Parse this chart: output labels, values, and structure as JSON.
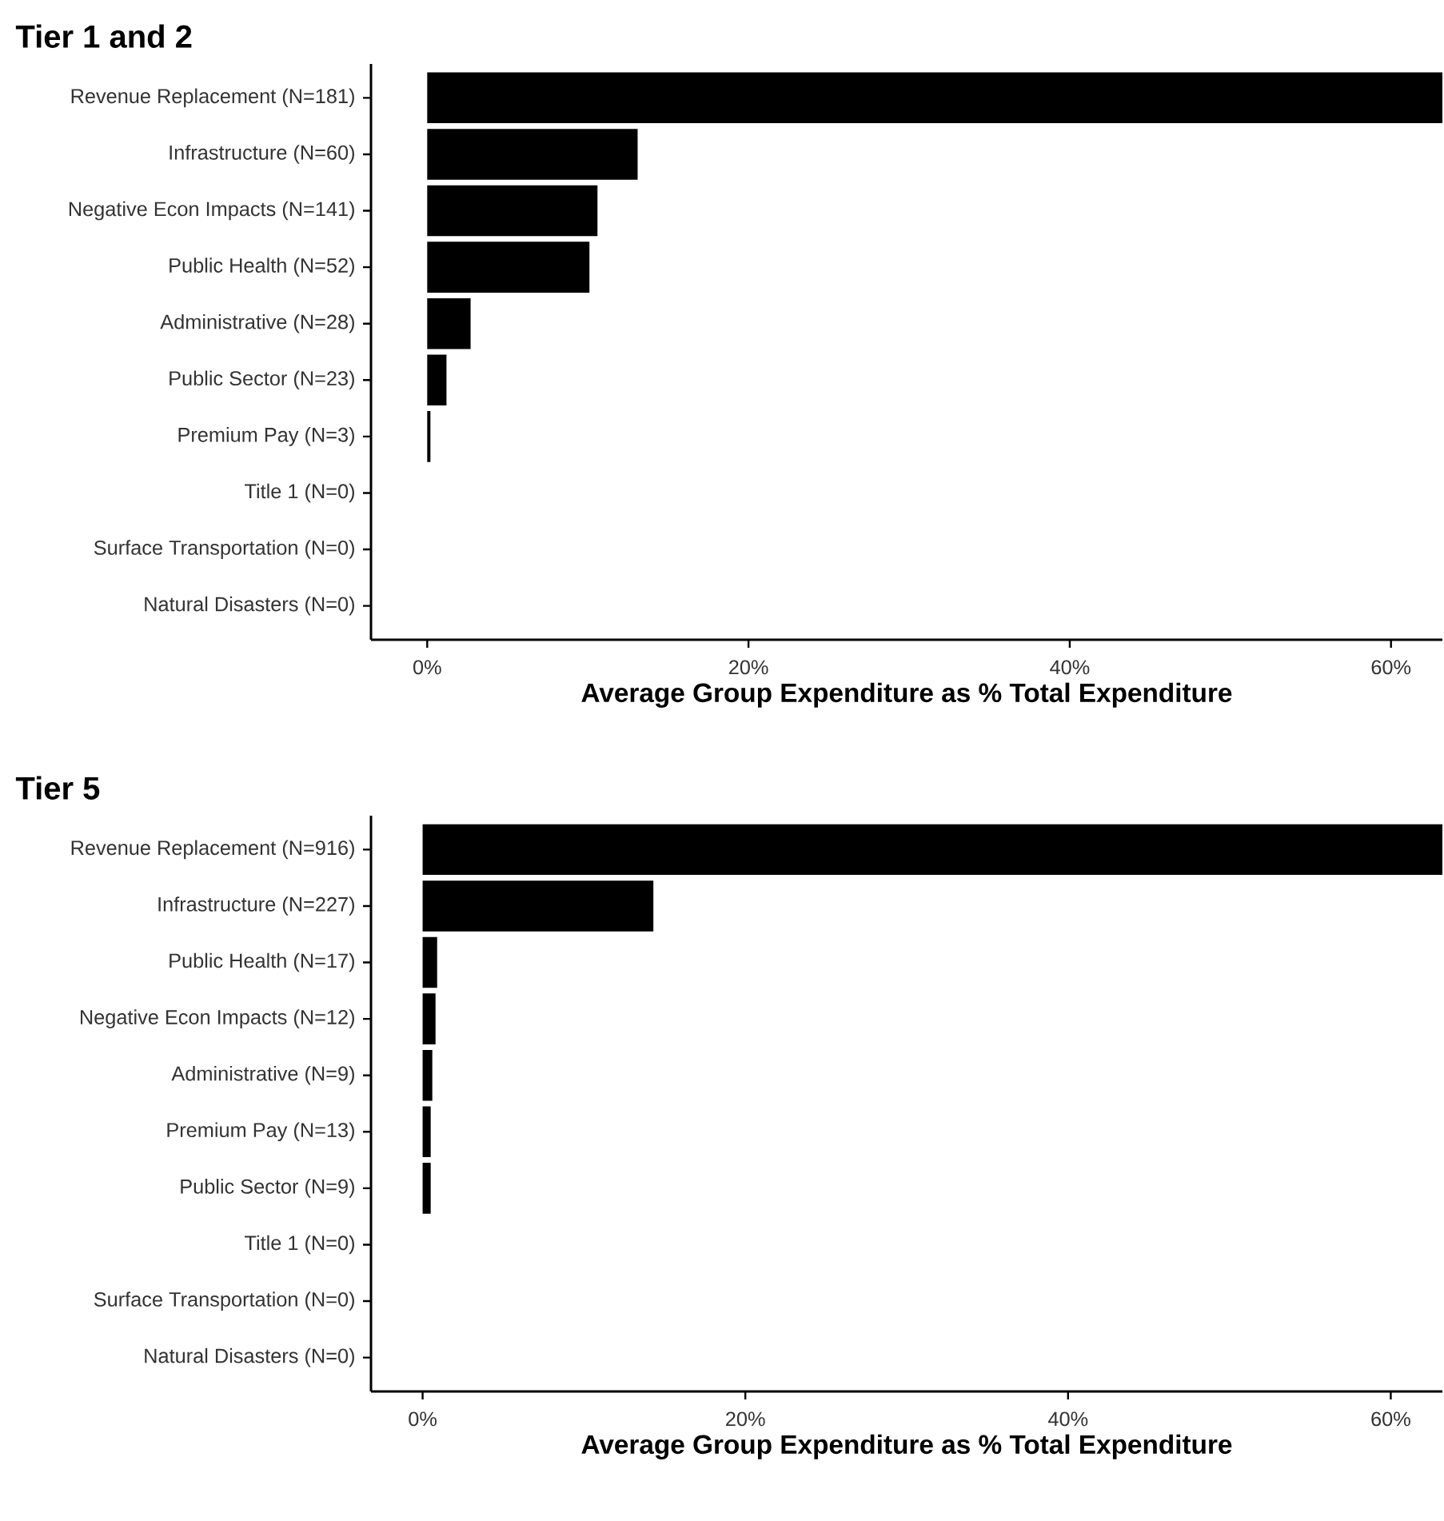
{
  "chart_data": [
    {
      "type": "bar",
      "orientation": "horizontal",
      "title": "Tier 1 and 2",
      "xlabel": "Average Group Expenditure as % Total Expenditure",
      "color": "#000000",
      "categories": [
        "Revenue Replacement (N=181)",
        "Infrastructure (N=60)",
        "Negative Econ Impacts (N=141)",
        "Public Health (N=52)",
        "Administrative (N=28)",
        "Public Sector (N=23)",
        "Premium Pay (N=3)",
        "Title 1 (N=0)",
        "Surface Transportation (N=0)",
        "Natural Disasters (N=0)"
      ],
      "values": [
        63.2,
        13.1,
        10.6,
        10.1,
        2.7,
        1.2,
        0.2,
        0,
        0,
        0
      ],
      "xlim": [
        -3.5,
        63.2
      ],
      "xticks": [
        {
          "value": 0,
          "label": "0%"
        },
        {
          "value": 20,
          "label": "20%"
        },
        {
          "value": 40,
          "label": "40%"
        },
        {
          "value": 60,
          "label": "60%"
        }
      ]
    },
    {
      "type": "bar",
      "orientation": "horizontal",
      "title": "Tier 5",
      "xlabel": "Average Group Expenditure as % Total Expenditure",
      "color": "#000000",
      "categories": [
        "Revenue Replacement (N=916)",
        "Infrastructure (N=227)",
        "Public Health (N=17)",
        "Negative Econ Impacts (N=12)",
        "Administrative (N=9)",
        "Premium Pay (N=13)",
        "Public Sector (N=9)",
        "Title 1 (N=0)",
        "Surface Transportation (N=0)",
        "Natural Disasters (N=0)"
      ],
      "values": [
        63.2,
        14.3,
        0.9,
        0.8,
        0.6,
        0.5,
        0.5,
        0,
        0,
        0
      ],
      "xlim": [
        -3.2,
        63.2
      ],
      "xticks": [
        {
          "value": 0,
          "label": "0%"
        },
        {
          "value": 20,
          "label": "20%"
        },
        {
          "value": 40,
          "label": "40%"
        },
        {
          "value": 60,
          "label": "60%"
        }
      ]
    }
  ]
}
